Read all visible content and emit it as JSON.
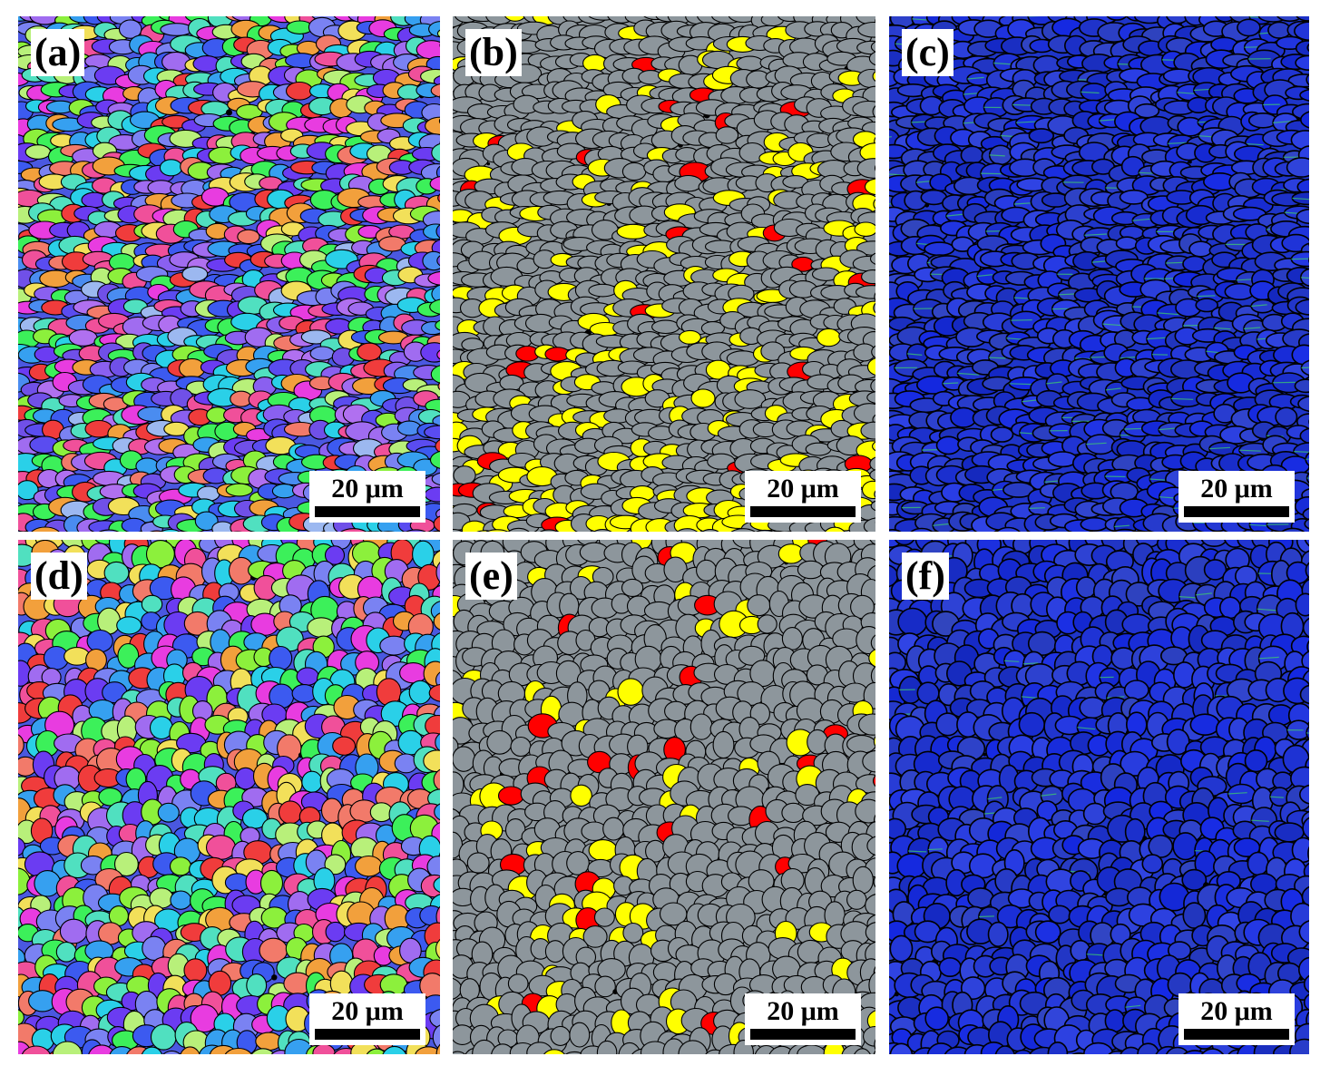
{
  "panels": [
    {
      "id": "a",
      "label": "(a)",
      "type": "ipf",
      "density": "high",
      "banded": true,
      "scale_label": "20 μm"
    },
    {
      "id": "b",
      "label": "(b)",
      "type": "phase",
      "density": "high",
      "banded": true,
      "scale_label": "20 μm"
    },
    {
      "id": "c",
      "label": "(c)",
      "type": "kam",
      "density": "high",
      "banded": true,
      "scale_label": "20 μm"
    },
    {
      "id": "d",
      "label": "(d)",
      "type": "ipf",
      "density": "low",
      "banded": false,
      "scale_label": "20 μm"
    },
    {
      "id": "e",
      "label": "(e)",
      "type": "phase",
      "density": "low",
      "banded": false,
      "scale_label": "20 μm"
    },
    {
      "id": "f",
      "label": "(f)",
      "type": "kam",
      "density": "low",
      "banded": false,
      "scale_label": "20 μm"
    }
  ],
  "colors": {
    "phase_matrix": "#8d969c",
    "phase_secondary": "#ffff00",
    "phase_third": "#ff0000",
    "kam_background": "#1e35c8",
    "kam_highlight": "#3fd46a",
    "grain_boundary": "#000000"
  }
}
